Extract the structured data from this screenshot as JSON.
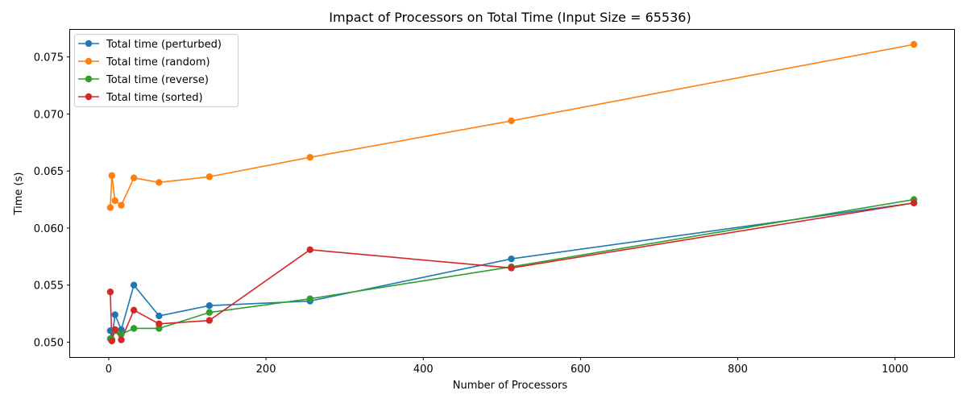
{
  "chart_data": {
    "type": "line",
    "title": "Impact of Processors on Total Time (Input Size = 65536)",
    "xlabel": "Number of Processors",
    "ylabel": "Time (s)",
    "x": [
      2,
      4,
      8,
      16,
      32,
      64,
      128,
      256,
      512,
      1024
    ],
    "xlim": [
      -49.1,
      1075.1
    ],
    "ylim": [
      0.04869,
      0.07738
    ],
    "xticks": [
      0,
      200,
      400,
      600,
      800,
      1000
    ],
    "xtick_labels": [
      "0",
      "200",
      "400",
      "600",
      "800",
      "1000"
    ],
    "yticks": [
      0.05,
      0.055,
      0.06,
      0.065,
      0.07,
      0.075
    ],
    "ytick_labels": [
      "0.050",
      "0.055",
      "0.060",
      "0.065",
      "0.070",
      "0.075"
    ],
    "grid": false,
    "legend_position": "upper-left",
    "series": [
      {
        "name": "Total time (perturbed)",
        "color": "#1f77b4",
        "values": [
          0.051,
          0.0502,
          0.0524,
          0.0511,
          0.055,
          0.0523,
          0.0532,
          0.0536,
          0.0573,
          0.0622
        ]
      },
      {
        "name": "Total time (random)",
        "color": "#ff7f0e",
        "values": [
          0.0618,
          0.0646,
          0.0624,
          0.062,
          0.0644,
          0.064,
          0.0645,
          0.0662,
          0.0694,
          0.0761
        ]
      },
      {
        "name": "Total time (reverse)",
        "color": "#2ca02c",
        "values": [
          0.0503,
          0.0502,
          0.051,
          0.0507,
          0.0512,
          0.0512,
          0.0526,
          0.0538,
          0.0566,
          0.0625
        ]
      },
      {
        "name": "Total time (sorted)",
        "color": "#d62728",
        "values": [
          0.0544,
          0.0501,
          0.0511,
          0.0502,
          0.0528,
          0.0516,
          0.0519,
          0.0581,
          0.0565,
          0.0622
        ]
      }
    ]
  }
}
